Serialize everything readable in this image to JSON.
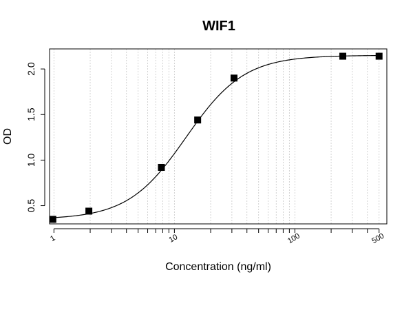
{
  "chart_data": {
    "type": "scatter",
    "title": "WIF1",
    "xlabel": "Concentration (ng/ml)",
    "ylabel": "OD",
    "x_scale": "log",
    "xlim": [
      0.92,
      580
    ],
    "ylim": [
      0.3,
      2.22
    ],
    "x_ticks": [
      1,
      10,
      100,
      500
    ],
    "x_tick_labels": [
      "1",
      "10",
      "100",
      "500"
    ],
    "y_ticks": [
      0.5,
      1.0,
      1.5,
      2.0
    ],
    "y_tick_labels": [
      "0.5",
      "1.0",
      "1.5",
      "2.0"
    ],
    "grid": "vertical dotted (log minor)",
    "series": [
      {
        "marker": "square",
        "x": [
          0.98,
          1.95,
          7.8,
          15.6,
          31.25,
          250,
          500
        ],
        "y": [
          0.35,
          0.44,
          0.92,
          1.44,
          1.9,
          2.14,
          2.14
        ]
      }
    ],
    "fit_curve": {
      "type": "4PL",
      "bottom": 0.35,
      "top": 2.15,
      "ec50": 12.5,
      "hill": 1.8
    }
  }
}
